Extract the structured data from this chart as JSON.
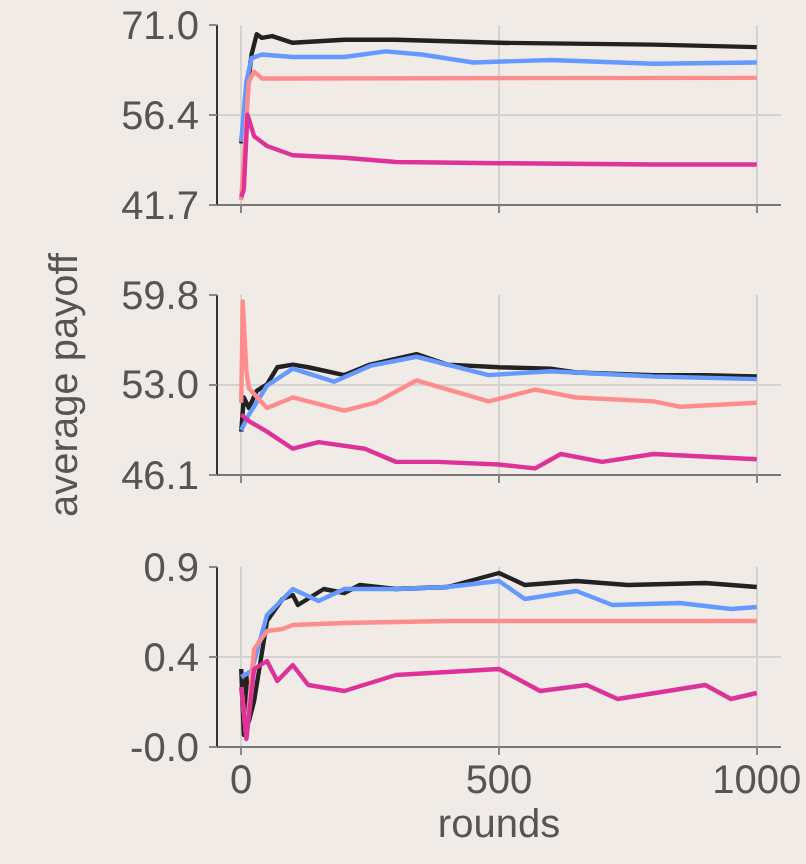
{
  "chart_data": [
    {
      "type": "line",
      "xlim": [
        -47,
        1047
      ],
      "xticks": [
        0,
        500,
        1000
      ],
      "ylim": [
        41.7,
        71.0
      ],
      "yticks": [
        41.7,
        56.4,
        {
          "value": 71.0,
          "label": "71.0"
        }
      ],
      "grid": true,
      "tick_labels": "y",
      "series": [
        {
          "color": "#222222",
          "x": [
            0,
            20,
            30,
            40,
            60,
            100,
            200,
            300,
            500,
            800,
            1000
          ],
          "values": [
            51.7,
            66.2,
            69.5,
            68.9,
            69.2,
            68.1,
            68.6,
            68.6,
            68.1,
            67.8,
            67.4
          ]
        },
        {
          "color": "#6699ff",
          "x": [
            0,
            10,
            20,
            40,
            100,
            200,
            280,
            350,
            450,
            600,
            800,
            1000
          ],
          "values": [
            52.0,
            61.8,
            65.6,
            66.2,
            65.8,
            65.8,
            66.7,
            66.2,
            64.9,
            65.3,
            64.7,
            64.9
          ]
        },
        {
          "color": "#ff8c8c",
          "x": [
            0,
            8,
            15,
            25,
            40,
            100,
            1000
          ],
          "values": [
            42.5,
            53.0,
            61.8,
            63.4,
            62.3,
            62.3,
            62.4
          ]
        },
        {
          "color": "#dd3399",
          "x": [
            0,
            5,
            12,
            25,
            50,
            100,
            200,
            300,
            500,
            800,
            1000
          ],
          "values": [
            43.0,
            44.2,
            56.4,
            52.9,
            51.3,
            49.8,
            49.4,
            48.7,
            48.5,
            48.3,
            48.3
          ]
        }
      ]
    },
    {
      "type": "line",
      "ylabel": "average payoff",
      "xlim": [
        -47,
        1047
      ],
      "xticks": [
        0,
        500,
        1000
      ],
      "ylim": [
        46.1,
        59.8
      ],
      "yticks": [
        46.1,
        {
          "value": 53.0,
          "label": "53.0"
        },
        59.8
      ],
      "grid": true,
      "tick_labels": "y",
      "series": [
        {
          "color": "#222222",
          "x": [
            0,
            5,
            15,
            30,
            50,
            70,
            100,
            130,
            200,
            250,
            340,
            400,
            500,
            600,
            650,
            800,
            900,
            1000
          ],
          "values": [
            49.4,
            52.0,
            51.2,
            52.5,
            53.0,
            54.3,
            54.5,
            54.3,
            53.7,
            54.5,
            55.3,
            54.5,
            54.3,
            54.2,
            53.9,
            53.7,
            53.7,
            53.6
          ]
        },
        {
          "color": "#6699ff",
          "x": [
            0,
            15,
            50,
            100,
            180,
            250,
            340,
            480,
            600,
            800,
            1000
          ],
          "values": [
            49.5,
            50.7,
            52.9,
            54.2,
            53.2,
            54.4,
            55.1,
            53.7,
            54.0,
            53.6,
            53.4
          ]
        },
        {
          "color": "#ff8c8c",
          "x": [
            0,
            3,
            10,
            15,
            50,
            100,
            200,
            260,
            340,
            480,
            570,
            650,
            800,
            850,
            1000
          ],
          "values": [
            51.6,
            59.3,
            54.0,
            52.7,
            51.2,
            52.0,
            51.0,
            51.6,
            53.3,
            51.7,
            52.6,
            52.0,
            51.7,
            51.3,
            51.6
          ]
        },
        {
          "color": "#dd3399",
          "x": [
            0,
            15,
            50,
            100,
            150,
            240,
            300,
            380,
            500,
            570,
            620,
            700,
            800,
            1000
          ],
          "values": [
            50.7,
            50.2,
            49.4,
            48.1,
            48.6,
            48.1,
            47.1,
            47.1,
            46.9,
            46.6,
            47.7,
            47.1,
            47.7,
            47.3
          ]
        }
      ]
    },
    {
      "type": "line",
      "xlabel": "rounds",
      "xlim": [
        -47,
        1047
      ],
      "xticks": [
        0,
        500,
        1000
      ],
      "ylim": [
        0,
        0.9
      ],
      "yticks": [
        {
          "value": 0,
          "label": "-0.0"
        },
        {
          "value": 0.45,
          "label": "0.4"
        },
        0.9
      ],
      "grid": true,
      "series": [
        {
          "color": "#222222",
          "x": [
            0,
            5,
            10,
            15,
            25,
            50,
            80,
            100,
            110,
            160,
            200,
            230,
            300,
            400,
            500,
            550,
            650,
            750,
            900,
            1000
          ],
          "values": [
            0.39,
            0.06,
            0.36,
            0.13,
            0.23,
            0.63,
            0.74,
            0.76,
            0.71,
            0.79,
            0.77,
            0.81,
            0.79,
            0.8,
            0.87,
            0.81,
            0.83,
            0.81,
            0.82,
            0.8
          ]
        },
        {
          "color": "#6699ff",
          "x": [
            0,
            20,
            50,
            100,
            150,
            200,
            300,
            400,
            500,
            550,
            650,
            720,
            850,
            950,
            1000
          ],
          "values": [
            0.35,
            0.38,
            0.66,
            0.79,
            0.73,
            0.79,
            0.79,
            0.8,
            0.83,
            0.74,
            0.78,
            0.71,
            0.72,
            0.69,
            0.7
          ]
        },
        {
          "color": "#ff8c8c",
          "x": [
            0,
            10,
            25,
            50,
            80,
            100,
            200,
            400,
            500,
            700,
            1000
          ],
          "values": [
            0.3,
            0.06,
            0.49,
            0.58,
            0.59,
            0.61,
            0.62,
            0.63,
            0.63,
            0.63,
            0.63
          ]
        },
        {
          "color": "#dd3399",
          "x": [
            0,
            10,
            25,
            50,
            70,
            100,
            130,
            200,
            300,
            500,
            580,
            670,
            730,
            900,
            950,
            1000
          ],
          "values": [
            0.3,
            0.04,
            0.39,
            0.43,
            0.33,
            0.41,
            0.31,
            0.28,
            0.36,
            0.39,
            0.28,
            0.31,
            0.24,
            0.31,
            0.24,
            0.27
          ]
        }
      ]
    }
  ]
}
